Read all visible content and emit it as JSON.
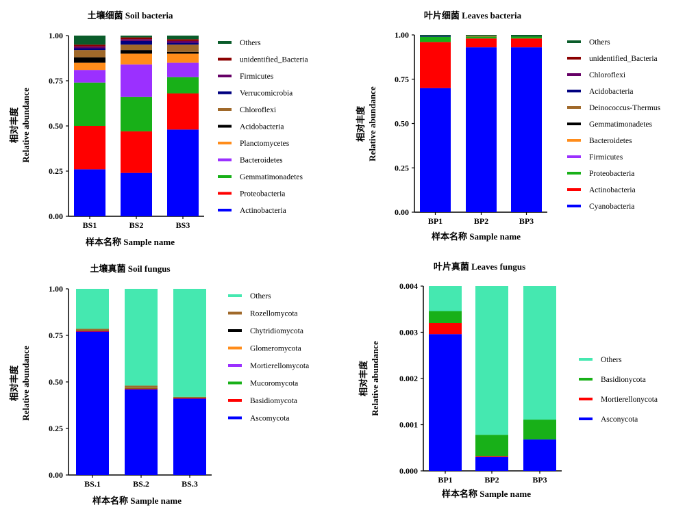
{
  "chart_data": [
    {
      "type": "bar",
      "stacked": true,
      "title": "土壤细菌  Soil bacteria",
      "xlabel": "样本名称  Sample name",
      "ylabel_cn": "相对丰度",
      "ylabel": "Relative abundance",
      "categories": [
        "BS1",
        "BS2",
        "BS3"
      ],
      "ylim": [
        0,
        1.0
      ],
      "yticks": [
        "0.00",
        "0.25",
        "0.50",
        "0.75",
        "1.00"
      ],
      "legend_position": "right",
      "series": [
        {
          "name": "Actinobacteria",
          "color": "#0000ff",
          "values": [
            0.26,
            0.24,
            0.48
          ]
        },
        {
          "name": "Proteobacteria",
          "color": "#ff0000",
          "values": [
            0.24,
            0.23,
            0.2
          ]
        },
        {
          "name": "Gemmatimonadetes",
          "color": "#18b018",
          "values": [
            0.24,
            0.19,
            0.09
          ]
        },
        {
          "name": "Bacteroidetes",
          "color": "#9b30ff",
          "values": [
            0.07,
            0.18,
            0.08
          ]
        },
        {
          "name": "Planctomycetes",
          "color": "#ff8c1a",
          "values": [
            0.04,
            0.06,
            0.05
          ]
        },
        {
          "name": "Acidobacteria",
          "color": "#000000",
          "values": [
            0.03,
            0.02,
            0.01
          ]
        },
        {
          "name": "Chloroflexi",
          "color": "#a0692a",
          "values": [
            0.04,
            0.03,
            0.04
          ]
        },
        {
          "name": "Verrucomicrobia",
          "color": "#000080",
          "values": [
            0.01,
            0.02,
            0.01
          ]
        },
        {
          "name": "Firmicutes",
          "color": "#660066",
          "values": [
            0.01,
            0.01,
            0.01
          ]
        },
        {
          "name": "unidentified_Bacteria",
          "color": "#8b0000",
          "values": [
            0.01,
            0.01,
            0.01
          ]
        },
        {
          "name": "Others",
          "color": "#0a5c2a",
          "values": [
            0.05,
            0.01,
            0.02
          ]
        }
      ]
    },
    {
      "type": "bar",
      "stacked": true,
      "title": "叶片细菌  Leaves bacteria",
      "xlabel": "样本名称  Sample name",
      "ylabel_cn": "相对丰度",
      "ylabel": "Relative abundance",
      "categories": [
        "BP1",
        "BP2",
        "BP3"
      ],
      "ylim": [
        0,
        1.0
      ],
      "yticks": [
        "0.00",
        "0.25",
        "0.50",
        "0.75",
        "1.00"
      ],
      "legend_position": "right",
      "series": [
        {
          "name": "Cyanobacteria",
          "color": "#0000ff",
          "values": [
            0.7,
            0.93,
            0.93
          ]
        },
        {
          "name": "Actinobacteria",
          "color": "#ff0000",
          "values": [
            0.26,
            0.05,
            0.05
          ]
        },
        {
          "name": "Proteobacteria",
          "color": "#18b018",
          "values": [
            0.03,
            0.01,
            0.01
          ]
        },
        {
          "name": "Firmicutes",
          "color": "#9b30ff",
          "values": [
            0.0,
            0.0,
            0.0
          ]
        },
        {
          "name": "Bacteroidetes",
          "color": "#ff8c1a",
          "values": [
            0.0,
            0.0,
            0.0
          ]
        },
        {
          "name": "Gemmatimonadetes",
          "color": "#000000",
          "values": [
            0.0,
            0.0,
            0.0
          ]
        },
        {
          "name": "Deinococcus-Thermus",
          "color": "#a0692a",
          "values": [
            0.0,
            0.005,
            0.0
          ]
        },
        {
          "name": "Acidobacteria",
          "color": "#000080",
          "values": [
            0.005,
            0.0,
            0.0
          ]
        },
        {
          "name": "Chloroflexi",
          "color": "#660066",
          "values": [
            0.0,
            0.0,
            0.0
          ]
        },
        {
          "name": "unidentified_Bacteria",
          "color": "#8b0000",
          "values": [
            0.0,
            0.0,
            0.0
          ]
        },
        {
          "name": "Others",
          "color": "#0a5c2a",
          "values": [
            0.005,
            0.005,
            0.01
          ]
        }
      ]
    },
    {
      "type": "bar",
      "stacked": true,
      "title": "土壤真菌  Soil fungus",
      "xlabel": "样本名称  Sample name",
      "ylabel_cn": "相对丰度",
      "ylabel": "Relative abundance",
      "categories": [
        "BS.1",
        "BS.2",
        "BS.3"
      ],
      "ylim": [
        0,
        1.0
      ],
      "yticks": [
        "0.00",
        "0.25",
        "0.50",
        "0.75",
        "1.00"
      ],
      "legend_position": "right",
      "series": [
        {
          "name": "Ascomycota",
          "color": "#0000ff",
          "values": [
            0.77,
            0.46,
            0.41
          ]
        },
        {
          "name": "Basidiomycota",
          "color": "#ff0000",
          "values": [
            0.006,
            0.005,
            0.005
          ]
        },
        {
          "name": "Mucoromycota",
          "color": "#18b018",
          "values": [
            0.003,
            0.003,
            0.002
          ]
        },
        {
          "name": "Mortierellomycota",
          "color": "#9b30ff",
          "values": [
            0.0,
            0.0,
            0.0
          ]
        },
        {
          "name": "Glomeromycota",
          "color": "#ff8c1a",
          "values": [
            0.0,
            0.0,
            0.0
          ]
        },
        {
          "name": "Chytridiomycota",
          "color": "#000000",
          "values": [
            0.0,
            0.0,
            0.0
          ]
        },
        {
          "name": "Rozellomycota",
          "color": "#a0692a",
          "values": [
            0.006,
            0.012,
            0.003
          ]
        },
        {
          "name": "Others",
          "color": "#45e8b0",
          "values": [
            0.215,
            0.52,
            0.58
          ]
        }
      ]
    },
    {
      "type": "bar",
      "stacked": true,
      "title": "叶片真菌  Leaves fungus",
      "xlabel": "样本名称  Sample name",
      "ylabel_cn": "相对丰度",
      "ylabel": "Relative abundance",
      "categories": [
        "BP1",
        "BP2",
        "BP3"
      ],
      "ylim": [
        0,
        0.004
      ],
      "yticks": [
        "0.000",
        "0.001",
        "0.002",
        "0.003",
        "0.004"
      ],
      "legend_position": "right",
      "series": [
        {
          "name": "Asconycota",
          "color": "#0000ff",
          "values": [
            0.00296,
            0.0003,
            0.00068
          ]
        },
        {
          "name": "Mortierellonycota",
          "color": "#ff0000",
          "values": [
            0.00024,
            2e-05,
            0.0
          ]
        },
        {
          "name": "Basidionycota",
          "color": "#18b018",
          "values": [
            0.00026,
            0.00046,
            0.00043
          ]
        },
        {
          "name": "Others",
          "color": "#45e8b0",
          "values": [
            0.00054,
            0.00322,
            0.00289
          ]
        }
      ]
    }
  ]
}
